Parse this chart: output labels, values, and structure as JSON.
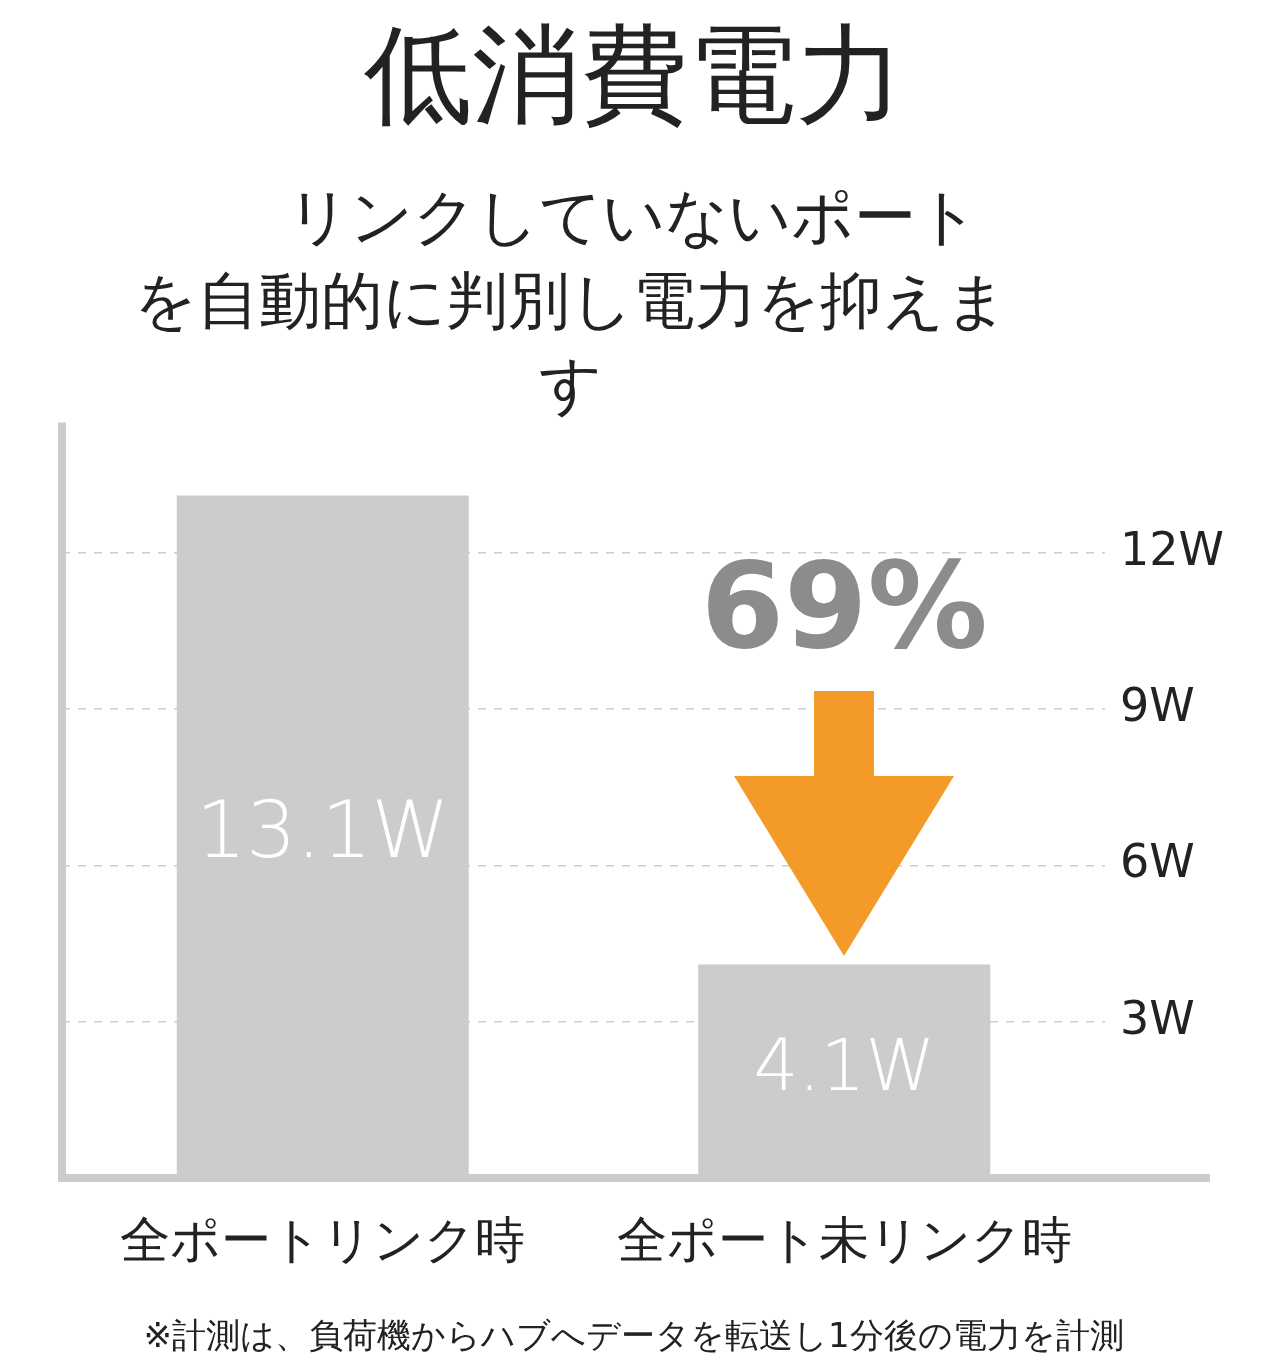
{
  "chart_data": {
    "type": "bar",
    "title": "低消費電力",
    "subtitle": "リンクしていないポートを自動的に判別し電力を抑えます",
    "categories": [
      "全ポートリンク時",
      "全ポート未リンク時"
    ],
    "values": [
      13.1,
      4.1
    ],
    "color": "#cccccc",
    "value_labels": [
      "13.1W",
      "4.1W"
    ],
    "ylim": [
      0,
      14.5
    ],
    "yticks": [
      {
        "value": 3,
        "label": "3W"
      },
      {
        "value": 6,
        "label": "6W"
      },
      {
        "value": 9,
        "label": "9W"
      },
      {
        "value": 12,
        "label": "12W"
      }
    ],
    "grid": "y",
    "legend": false,
    "annotations": [
      {
        "text": "69%",
        "x": "全ポート未リンク時",
        "y": 4.1
      },
      "※計測は、負荷機からハブへデータを転送し1分後の電力を計測"
    ]
  }
}
